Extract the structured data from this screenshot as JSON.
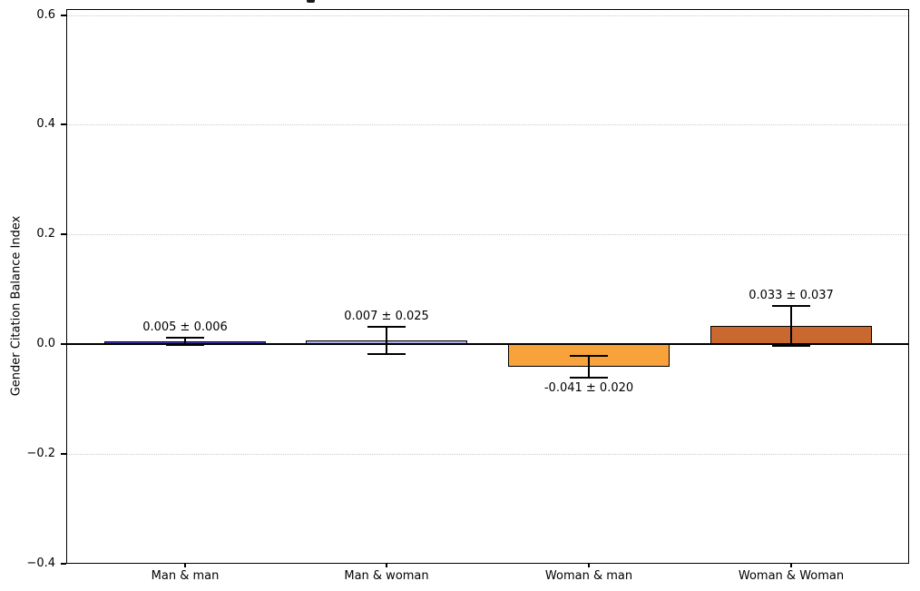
{
  "chart_data": {
    "type": "bar",
    "title": "",
    "xlabel": "",
    "ylabel": "Gender Citation Balance Index",
    "categories": [
      "Man & man",
      "Man & woman",
      "Woman & man",
      "Woman & Woman"
    ],
    "values": [
      0.005,
      0.007,
      -0.041,
      0.033
    ],
    "errors": [
      0.006,
      0.025,
      0.02,
      0.037
    ],
    "value_labels": [
      "0.005 ± 0.006",
      "0.007 ± 0.025",
      "-0.041 ± 0.020",
      "0.033 ± 0.037"
    ],
    "bar_colors": [
      "#4244c2",
      "#aab6e6",
      "#f7a23b",
      "#c9682f"
    ],
    "bar_edge_color": "#000000",
    "error_bar_color": "#000000",
    "ylim": [
      -0.4,
      0.612
    ],
    "yticks": [
      0.6,
      0.4,
      0.2,
      0.0,
      -0.2,
      -0.4
    ],
    "ytick_labels": [
      "0.6",
      "0.4",
      "0.2",
      "0.0",
      "−0.2",
      "−0.4"
    ],
    "grid": "horizontal-dotted",
    "grid_color": "#c9c9c9",
    "zero_line": true,
    "legend": null
  }
}
